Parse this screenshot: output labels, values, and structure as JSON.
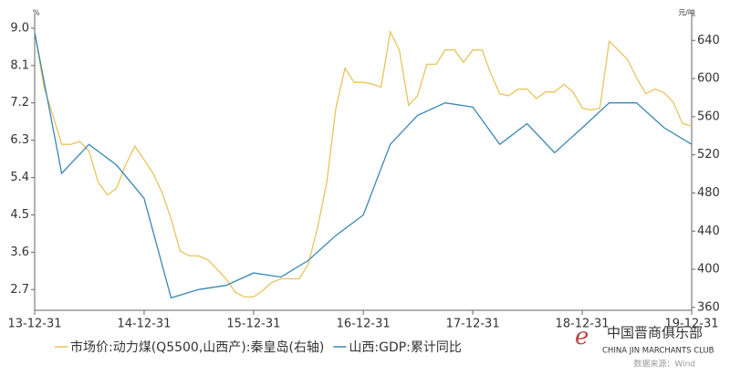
{
  "chart_data": {
    "type": "line",
    "y_unit": "%",
    "y2_unit": "元/吨",
    "xlim": [
      "13-12-31",
      "19-12-31"
    ],
    "xticks": [
      "13-12-31",
      "14-12-31",
      "15-12-31",
      "16-12-31",
      "17-12-31",
      "18-12-31",
      "19-12-31"
    ],
    "ylim": [
      2.2,
      9.35
    ],
    "yticks": [
      {
        "value": 9,
        "label": "9.0"
      },
      8.1,
      7.2,
      6.3,
      5.4,
      4.5,
      3.6,
      2.7
    ],
    "y2lim": [
      357,
      668
    ],
    "y2ticks": [
      640,
      600,
      560,
      520,
      480,
      440,
      400,
      360
    ],
    "series": [
      {
        "name": "市场价:动力煤(Q5500,山西产):秦皇岛(右轴)",
        "color": "#e9c35c",
        "axis": "y2",
        "x": [
          "13-12-31",
          "14-01-31",
          "14-02-28",
          "14-03-31",
          "14-04-30",
          "14-05-31",
          "14-06-30",
          "14-07-31",
          "14-08-31",
          "14-09-30",
          "14-10-31",
          "14-11-30",
          "14-12-31",
          "15-01-31",
          "15-02-28",
          "15-03-31",
          "15-04-30",
          "15-05-31",
          "15-06-30",
          "15-07-31",
          "15-08-31",
          "15-09-30",
          "15-10-31",
          "15-11-30",
          "15-12-31",
          "16-01-31",
          "16-02-29",
          "16-03-31",
          "16-04-30",
          "16-05-31",
          "16-06-30",
          "16-07-31",
          "16-08-31",
          "16-09-30",
          "16-10-31",
          "16-11-30",
          "16-12-31",
          "17-01-31",
          "17-02-28",
          "17-03-31",
          "17-04-30",
          "17-05-31",
          "17-06-30",
          "17-07-31",
          "17-08-31",
          "17-09-30",
          "17-10-31",
          "17-11-30",
          "17-12-31",
          "18-01-31",
          "18-02-28",
          "18-03-31",
          "18-04-30",
          "18-05-31",
          "18-06-30",
          "18-07-31",
          "18-08-31",
          "18-09-30",
          "18-10-31",
          "18-11-30",
          "18-12-31",
          "19-01-31",
          "19-02-28",
          "19-03-31",
          "19-04-30",
          "19-05-31",
          "19-06-30",
          "19-07-31",
          "19-08-31",
          "19-09-30",
          "19-10-31",
          "19-11-30",
          "19-12-31"
        ],
        "values": [
          649,
          591,
          563,
          531,
          531,
          534,
          524,
          491,
          478,
          485,
          510,
          529,
          515,
          500,
          481,
          453,
          419,
          414,
          414,
          410,
          400,
          390,
          376,
          371,
          371,
          378,
          386,
          390,
          390,
          390,
          405,
          443,
          491,
          568,
          611,
          596,
          596,
          594,
          591,
          649,
          630,
          572,
          582,
          615,
          615,
          630,
          630,
          617,
          630,
          630,
          606,
          584,
          582,
          589,
          589,
          579,
          586,
          586,
          594,
          586,
          569,
          567,
          569,
          639,
          630,
          620,
          601,
          584,
          589,
          585,
          575,
          553,
          550
        ]
      },
      {
        "name": "山西:GDP:累计同比",
        "color": "#3a87b3",
        "x": [
          "13-12-31",
          "14-03-31",
          "14-06-30",
          "14-09-30",
          "14-12-31",
          "15-03-31",
          "15-06-30",
          "15-09-30",
          "15-12-31",
          "16-03-31",
          "16-06-30",
          "16-09-30",
          "16-12-31",
          "17-03-31",
          "17-06-30",
          "17-09-30",
          "17-12-31",
          "18-03-31",
          "18-06-30",
          "18-09-30",
          "18-12-31",
          "19-03-31",
          "19-06-30",
          "19-09-30",
          "19-12-31"
        ],
        "values": [
          8.9,
          5.5,
          6.2,
          5.7,
          4.9,
          2.5,
          2.7,
          2.8,
          3.1,
          3.0,
          3.4,
          4.0,
          4.5,
          6.2,
          6.9,
          7.2,
          7.1,
          6.2,
          6.7,
          6.0,
          6.6,
          7.2,
          7.2,
          6.6,
          6.2
        ]
      }
    ],
    "source": "数据来源：Wind",
    "logo_cn": "中国晋商俱乐部",
    "logo_en": "CHINA JIN MARCHANTS CLUB"
  }
}
